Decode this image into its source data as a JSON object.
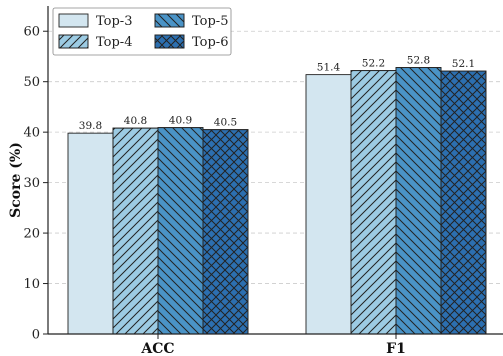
{
  "chart_data": {
    "type": "bar",
    "categories": [
      "ACC",
      "F1"
    ],
    "series": [
      {
        "name": "Top-3",
        "values": [
          39.8,
          51.4
        ],
        "color": "#d3e6f0",
        "pattern": "none"
      },
      {
        "name": "Top-4",
        "values": [
          40.8,
          52.2
        ],
        "color": "#9ccbe3",
        "pattern": "forward-hatch"
      },
      {
        "name": "Top-5",
        "values": [
          40.9,
          52.8
        ],
        "color": "#4a93c6",
        "pattern": "back-hatch"
      },
      {
        "name": "Top-6",
        "values": [
          40.5,
          52.1
        ],
        "color": "#2c6fb0",
        "pattern": "cross-hatch"
      }
    ],
    "title": "",
    "xlabel": "",
    "ylabel": "Score (%)",
    "ylim": [
      0,
      65
    ],
    "yticks": [
      0,
      10,
      20,
      30,
      40,
      50,
      60
    ],
    "grid": true,
    "legend_position": "top-left"
  }
}
